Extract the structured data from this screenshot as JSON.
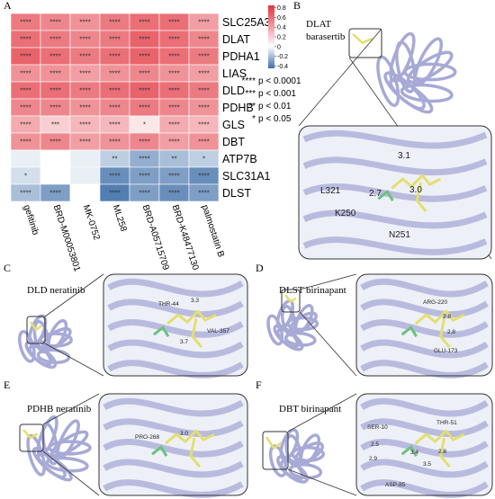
{
  "chart_data": {
    "type": "heatmap",
    "panel_label": "A",
    "rows": [
      "SLC25A3",
      "DLAT",
      "PDHA1",
      "LIAS",
      "DLD",
      "PDHB",
      "GLS",
      "DBT",
      "ATP7B",
      "SLC31A1",
      "DLST"
    ],
    "categories": [
      "gefitinib",
      "BRD-M00053801",
      "MK-0752",
      "ML258",
      "BRD-A05715709",
      "BRD-K48477130",
      "palmostatin B"
    ],
    "values": [
      [
        0.55,
        0.5,
        0.45,
        0.55,
        0.6,
        0.6,
        0.4
      ],
      [
        0.6,
        0.55,
        0.5,
        0.55,
        0.65,
        0.6,
        0.5
      ],
      [
        0.65,
        0.6,
        0.55,
        0.6,
        0.65,
        0.6,
        0.55
      ],
      [
        0.45,
        0.45,
        0.4,
        0.45,
        0.5,
        0.45,
        0.4
      ],
      [
        0.6,
        0.6,
        0.55,
        0.6,
        0.65,
        0.6,
        0.55
      ],
      [
        0.5,
        0.5,
        0.45,
        0.5,
        0.55,
        0.5,
        0.45
      ],
      [
        0.35,
        0.2,
        0.3,
        0.3,
        0.1,
        0.35,
        0.3
      ],
      [
        0.45,
        0.5,
        0.4,
        0.45,
        0.5,
        0.4,
        0.45
      ],
      [
        -0.05,
        0.0,
        -0.05,
        -0.15,
        -0.25,
        -0.2,
        -0.15
      ],
      [
        -0.1,
        0.0,
        -0.05,
        -0.35,
        -0.3,
        -0.3,
        -0.35
      ],
      [
        -0.2,
        -0.3,
        0.0,
        -0.4,
        -0.3,
        -0.35,
        -0.3
      ]
    ],
    "stars": [
      [
        "****",
        "****",
        "****",
        "****",
        "****",
        "****",
        "****"
      ],
      [
        "****",
        "****",
        "****",
        "****",
        "****",
        "****",
        "****"
      ],
      [
        "****",
        "****",
        "****",
        "****",
        "****",
        "****",
        "****"
      ],
      [
        "****",
        "****",
        "****",
        "****",
        "****",
        "****",
        "****"
      ],
      [
        "****",
        "****",
        "****",
        "****",
        "****",
        "****",
        "****"
      ],
      [
        "****",
        "****",
        "****",
        "****",
        "****",
        "****",
        "****"
      ],
      [
        "****",
        "***",
        "****",
        "****",
        "*",
        "****",
        "****"
      ],
      [
        "****",
        "****",
        "****",
        "****",
        "****",
        "****",
        "****"
      ],
      [
        null,
        null,
        null,
        "**",
        "****",
        "**",
        "*"
      ],
      [
        "*",
        null,
        null,
        "****",
        "****",
        "****",
        "****"
      ],
      [
        "****",
        "****",
        null,
        "****",
        "****",
        "****",
        "****"
      ]
    ],
    "zlim": [
      -0.45,
      0.85
    ],
    "zticks": [
      0.8,
      0.6,
      0.4,
      0.2,
      0,
      -0.2,
      -0.4
    ],
    "color_low": "#3d6ea8",
    "color_mid": "#ffffff",
    "color_high": "#e2333d",
    "significance_legend": [
      {
        "stars": "****",
        "label": "p < 0.0001"
      },
      {
        "stars": "***",
        "label": "p < 0.001"
      },
      {
        "stars": "**",
        "label": "p < 0.01"
      },
      {
        "stars": "*",
        "label": "p < 0.05"
      }
    ]
  },
  "panels": [
    {
      "label": "B",
      "title": [
        "DLAT",
        "barasertib"
      ],
      "annotations": [
        "L321",
        "3.1",
        "2.7",
        "K250",
        "3.0",
        "N251"
      ]
    },
    {
      "label": "C",
      "title": [
        "DLD neratinib"
      ],
      "annotations": [
        "THR-44",
        "3.3",
        "VAL-357",
        "3.7"
      ]
    },
    {
      "label": "D",
      "title": [
        "DLST birinapant"
      ],
      "annotations": [
        "ARG-220",
        "2.8",
        "2.8",
        "GLU-173"
      ]
    },
    {
      "label": "E",
      "title": [
        "PDHB neratinib"
      ],
      "annotations": [
        "PRO-268",
        "3.0"
      ]
    },
    {
      "label": "F",
      "title": [
        "DBT birinapant"
      ],
      "annotations": [
        "SER-10",
        "THR-51",
        "2.5",
        "2.9",
        "3.4",
        "3.5",
        "2.8",
        "ASP-85"
      ]
    }
  ]
}
